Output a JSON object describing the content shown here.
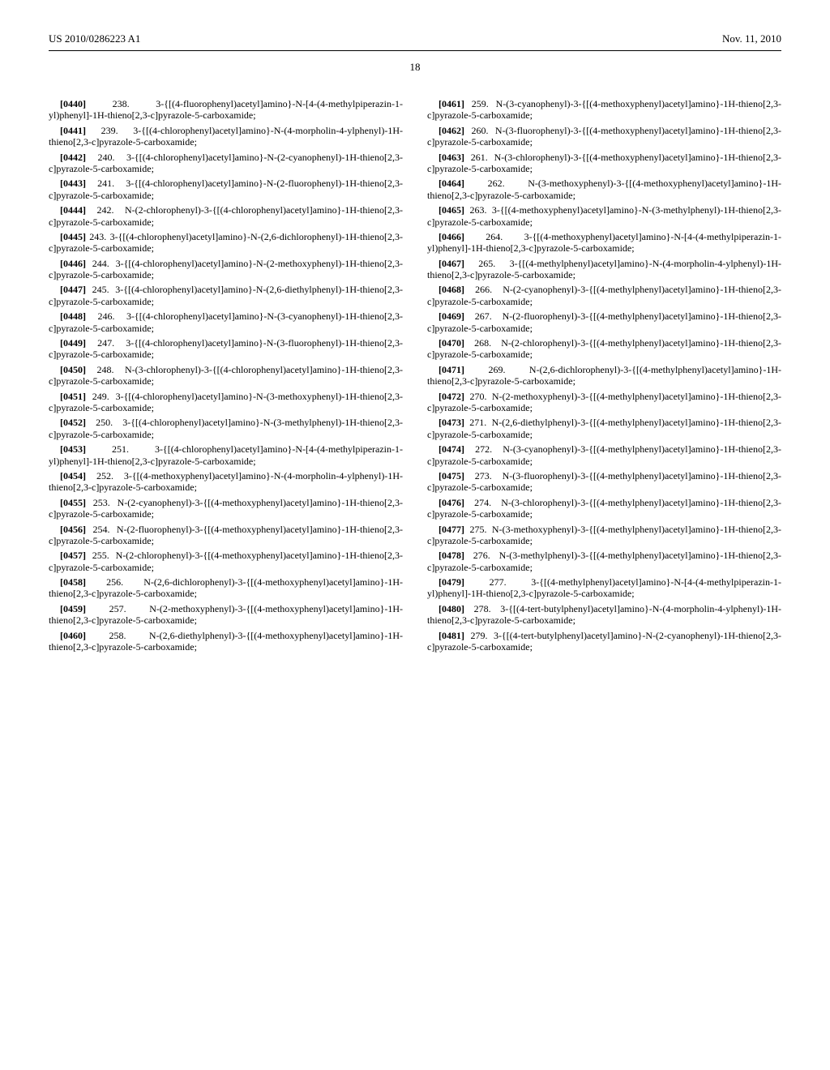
{
  "header": {
    "pub_number": "US 2010/0286223 A1",
    "pub_date": "Nov. 11, 2010",
    "page_number": "18"
  },
  "left": [
    {
      "n": "[0440]",
      "t": "238. 3-{[(4-fluorophenyl)acetyl]amino}-N-[4-(4-methylpiperazin-1-yl)phenyl]-1H-thieno[2,3-c]pyrazole-5-carboxamide;"
    },
    {
      "n": "[0441]",
      "t": "239. 3-{[(4-chlorophenyl)acetyl]amino}-N-(4-morpholin-4-ylphenyl)-1H-thieno[2,3-c]pyrazole-5-carboxamide;"
    },
    {
      "n": "[0442]",
      "t": "240. 3-{[(4-chlorophenyl)acetyl]amino}-N-(2-cyanophenyl)-1H-thieno[2,3-c]pyrazole-5-carboxamide;"
    },
    {
      "n": "[0443]",
      "t": "241. 3-{[(4-chlorophenyl)acetyl]amino}-N-(2-fluorophenyl)-1H-thieno[2,3-c]pyrazole-5-carboxamide;"
    },
    {
      "n": "[0444]",
      "t": "242. N-(2-chlorophenyl)-3-{[(4-chlorophenyl)acetyl]amino}-1H-thieno[2,3-c]pyrazole-5-carboxamide;"
    },
    {
      "n": "[0445]",
      "t": "243. 3-{[(4-chlorophenyl)acetyl]amino}-N-(2,6-dichlorophenyl)-1H-thieno[2,3-c]pyrazole-5-carboxamide;"
    },
    {
      "n": "[0446]",
      "t": "244. 3-{[(4-chlorophenyl)acetyl]amino}-N-(2-methoxyphenyl)-1H-thieno[2,3-c]pyrazole-5-carboxamide;"
    },
    {
      "n": "[0447]",
      "t": "245. 3-{[(4-chlorophenyl)acetyl]amino}-N-(2,6-diethylphenyl)-1H-thieno[2,3-c]pyrazole-5-carboxamide;"
    },
    {
      "n": "[0448]",
      "t": "246. 3-{[(4-chlorophenyl)acetyl]amino}-N-(3-cyanophenyl)-1H-thieno[2,3-c]pyrazole-5-carboxamide;"
    },
    {
      "n": "[0449]",
      "t": "247. 3-{[(4-chlorophenyl)acetyl]amino}-N-(3-fluorophenyl)-1H-thieno[2,3-c]pyrazole-5-carboxamide;"
    },
    {
      "n": "[0450]",
      "t": "248. N-(3-chlorophenyl)-3-{[(4-chlorophenyl)acetyl]amino}-1H-thieno[2,3-c]pyrazole-5-carboxamide;"
    },
    {
      "n": "[0451]",
      "t": "249. 3-{[(4-chlorophenyl)acetyl]amino}-N-(3-methoxyphenyl)-1H-thieno[2,3-c]pyrazole-5-carboxamide;"
    },
    {
      "n": "[0452]",
      "t": "250. 3-{[(4-chlorophenyl)acetyl]amino}-N-(3-methylphenyl)-1H-thieno[2,3-c]pyrazole-5-carboxamide;"
    },
    {
      "n": "[0453]",
      "t": "251. 3-{[(4-chlorophenyl)acetyl]amino}-N-[4-(4-methylpiperazin-1-yl)phenyl]-1H-thieno[2,3-c]pyrazole-5-carboxamide;"
    },
    {
      "n": "[0454]",
      "t": "252. 3-{[(4-methoxyphenyl)acetyl]amino}-N-(4-morpholin-4-ylphenyl)-1H-thieno[2,3-c]pyrazole-5-carboxamide;"
    },
    {
      "n": "[0455]",
      "t": "253. N-(2-cyanophenyl)-3-{[(4-methoxyphenyl)acetyl]amino}-1H-thieno[2,3-c]pyrazole-5-carboxamide;"
    },
    {
      "n": "[0456]",
      "t": "254. N-(2-fluorophenyl)-3-{[(4-methoxyphenyl)acetyl]amino}-1H-thieno[2,3-c]pyrazole-5-carboxamide;"
    },
    {
      "n": "[0457]",
      "t": "255. N-(2-chlorophenyl)-3-{[(4-methoxyphenyl)acetyl]amino}-1H-thieno[2,3-c]pyrazole-5-carboxamide;"
    },
    {
      "n": "[0458]",
      "t": "256. N-(2,6-dichlorophenyl)-3-{[(4-methoxyphenyl)acetyl]amino}-1H-thieno[2,3-c]pyrazole-5-carboxamide;"
    },
    {
      "n": "[0459]",
      "t": "257. N-(2-methoxyphenyl)-3-{[(4-methoxyphenyl)acetyl]amino}-1H-thieno[2,3-c]pyrazole-5-carboxamide;"
    },
    {
      "n": "[0460]",
      "t": "258. N-(2,6-diethylphenyl)-3-{[(4-methoxyphenyl)acetyl]amino}-1H-thieno[2,3-c]pyrazole-5-carboxamide;"
    }
  ],
  "right": [
    {
      "n": "[0461]",
      "t": "259. N-(3-cyanophenyl)-3-{[(4-methoxyphenyl)acetyl]amino}-1H-thieno[2,3-c]pyrazole-5-carboxamide;"
    },
    {
      "n": "[0462]",
      "t": "260. N-(3-fluorophenyl)-3-{[(4-methoxyphenyl)acetyl]amino}-1H-thieno[2,3-c]pyrazole-5-carboxamide;"
    },
    {
      "n": "[0463]",
      "t": "261. N-(3-chlorophenyl)-3-{[(4-methoxyphenyl)acetyl]amino}-1H-thieno[2,3-c]pyrazole-5-carboxamide;"
    },
    {
      "n": "[0464]",
      "t": "262. N-(3-methoxyphenyl)-3-{[(4-methoxyphenyl)acetyl]amino}-1H-thieno[2,3-c]pyrazole-5-carboxamide;"
    },
    {
      "n": "[0465]",
      "t": "263. 3-{[(4-methoxyphenyl)acetyl]amino}-N-(3-methylphenyl)-1H-thieno[2,3-c]pyrazole-5-carboxamide;"
    },
    {
      "n": "[0466]",
      "t": "264. 3-{[(4-methoxyphenyl)acetyl]amino}-N-[4-(4-methylpiperazin-1-yl)phenyl]-1H-thieno[2,3-c]pyrazole-5-carboxamide;"
    },
    {
      "n": "[0467]",
      "t": "265. 3-{[(4-methylphenyl)acetyl]amino}-N-(4-morpholin-4-ylphenyl)-1H-thieno[2,3-c]pyrazole-5-carboxamide;"
    },
    {
      "n": "[0468]",
      "t": "266. N-(2-cyanophenyl)-3-{[(4-methylphenyl)acetyl]amino}-1H-thieno[2,3-c]pyrazole-5-carboxamide;"
    },
    {
      "n": "[0469]",
      "t": "267. N-(2-fluorophenyl)-3-{[(4-methylphenyl)acetyl]amino}-1H-thieno[2,3-c]pyrazole-5-carboxamide;"
    },
    {
      "n": "[0470]",
      "t": "268. N-(2-chlorophenyl)-3-{[(4-methylphenyl)acetyl]amino}-1H-thieno[2,3-c]pyrazole-5-carboxamide;"
    },
    {
      "n": "[0471]",
      "t": "269. N-(2,6-dichlorophenyl)-3-{[(4-methylphenyl)acetyl]amino}-1H-thieno[2,3-c]pyrazole-5-carboxamide;"
    },
    {
      "n": "[0472]",
      "t": "270. N-(2-methoxyphenyl)-3-{[(4-methylphenyl)acetyl]amino}-1H-thieno[2,3-c]pyrazole-5-carboxamide;"
    },
    {
      "n": "[0473]",
      "t": "271. N-(2,6-diethylphenyl)-3-{[(4-methylphenyl)acetyl]amino}-1H-thieno[2,3-c]pyrazole-5-carboxamide;"
    },
    {
      "n": "[0474]",
      "t": "272. N-(3-cyanophenyl)-3-{[(4-methylphenyl)acetyl]amino}-1H-thieno[2,3-c]pyrazole-5-carboxamide;"
    },
    {
      "n": "[0475]",
      "t": "273. N-(3-fluorophenyl)-3-{[(4-methylphenyl)acetyl]amino}-1H-thieno[2,3-c]pyrazole-5-carboxamide;"
    },
    {
      "n": "[0476]",
      "t": "274. N-(3-chlorophenyl)-3-{[(4-methylphenyl)acetyl]amino}-1H-thieno[2,3-c]pyrazole-5-carboxamide;"
    },
    {
      "n": "[0477]",
      "t": "275. N-(3-methoxyphenyl)-3-{[(4-methylphenyl)acetyl]amino}-1H-thieno[2,3-c]pyrazole-5-carboxamide;"
    },
    {
      "n": "[0478]",
      "t": "276. N-(3-methylphenyl)-3-{[(4-methylphenyl)acetyl]amino}-1H-thieno[2,3-c]pyrazole-5-carboxamide;"
    },
    {
      "n": "[0479]",
      "t": "277. 3-{[(4-methylphenyl)acetyl]amino}-N-[4-(4-methylpiperazin-1-yl)phenyl]-1H-thieno[2,3-c]pyrazole-5-carboxamide;"
    },
    {
      "n": "[0480]",
      "t": "278. 3-{[(4-tert-butylphenyl)acetyl]amino}-N-(4-morpholin-4-ylphenyl)-1H-thieno[2,3-c]pyrazole-5-carboxamide;"
    },
    {
      "n": "[0481]",
      "t": "279. 3-{[(4-tert-butylphenyl)acetyl]amino}-N-(2-cyanophenyl)-1H-thieno[2,3-c]pyrazole-5-carboxamide;"
    }
  ]
}
